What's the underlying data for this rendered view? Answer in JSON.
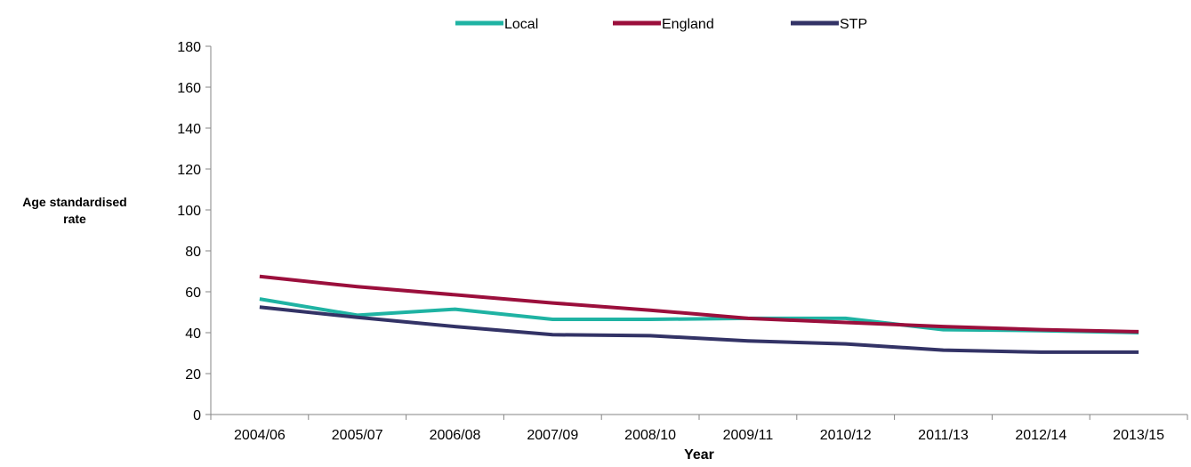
{
  "chart_data": {
    "type": "line",
    "xlabel": "Year",
    "ylabel_lines": [
      "Age standardised",
      "rate"
    ],
    "ylim": [
      0,
      180
    ],
    "yticks": [
      0,
      20,
      40,
      60,
      80,
      100,
      120,
      140,
      160,
      180
    ],
    "grid": false,
    "legend_position": "top-center",
    "categories": [
      "2004/06",
      "2005/07",
      "2006/08",
      "2007/09",
      "2008/10",
      "2009/11",
      "2010/12",
      "2011/13",
      "2012/14",
      "2013/15"
    ],
    "series": [
      {
        "name": "Local",
        "color": "#1fb3a3",
        "values": [
          56.5,
          48.5,
          51.5,
          46.5,
          46.5,
          47.0,
          47.0,
          41.5,
          41.0,
          40.0
        ]
      },
      {
        "name": "England",
        "color": "#9b0f3c",
        "values": [
          67.5,
          62.5,
          58.5,
          54.5,
          51.0,
          47.0,
          45.0,
          43.0,
          41.5,
          40.5
        ]
      },
      {
        "name": "STP",
        "color": "#333366",
        "values": [
          52.5,
          47.5,
          43.0,
          39.0,
          38.5,
          36.0,
          34.5,
          31.5,
          30.5,
          30.5
        ]
      }
    ]
  }
}
